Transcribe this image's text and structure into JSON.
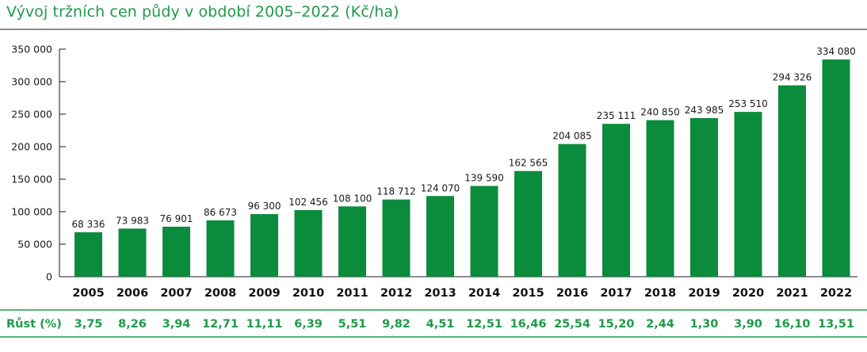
{
  "title": "Vývoj tržních cen půdy v období 2005–2022 (Kč/ha)",
  "colors": {
    "bar": "#0a8c3c",
    "accent": "#1f9a4a",
    "text": "#1a1a1a"
  },
  "chart_data": {
    "type": "bar",
    "title": "Vývoj tržních cen půdy v období 2005–2022 (Kč/ha)",
    "categories": [
      "2005",
      "2006",
      "2007",
      "2008",
      "2009",
      "2010",
      "2011",
      "2012",
      "2013",
      "2014",
      "2015",
      "2016",
      "2017",
      "2018",
      "2019",
      "2020",
      "2021",
      "2022"
    ],
    "values": [
      68336,
      73983,
      76901,
      86673,
      96300,
      102456,
      108100,
      118712,
      124070,
      139590,
      162565,
      204085,
      235111,
      240850,
      243985,
      253510,
      294326,
      334080
    ],
    "value_labels": [
      "68 336",
      "73 983",
      "76 901",
      "86 673",
      "96 300",
      "102 456",
      "108 100",
      "118 712",
      "124 070",
      "139 590",
      "162 565",
      "204 085",
      "235 111",
      "240 850",
      "243 985",
      "253 510",
      "294 326",
      "334 080"
    ],
    "ylim": [
      0,
      350000
    ],
    "yticks": [
      0,
      50000,
      100000,
      150000,
      200000,
      250000,
      300000,
      350000
    ],
    "ytick_labels": [
      "0",
      "50 000",
      "100 000",
      "150 000",
      "200 000",
      "250 000",
      "300 000",
      "350 000"
    ],
    "xlabel": "",
    "ylabel": "",
    "growth_label": "Růst (%)",
    "growth": [
      "3,75",
      "8,26",
      "3,94",
      "12,71",
      "11,11",
      "6,39",
      "5,51",
      "9,82",
      "4,51",
      "12,51",
      "16,46",
      "25,54",
      "15,20",
      "2,44",
      "1,30",
      "3,90",
      "16,10",
      "13,51"
    ],
    "grid": false
  }
}
